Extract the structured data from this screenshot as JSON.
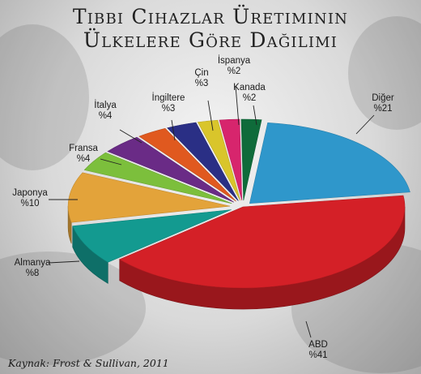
{
  "chart_data": {
    "type": "pie",
    "title_line1": "Tıbbi Cihazlar Üretiminin",
    "title_line2": "Ülkelere Göre Dağılımı",
    "slices": [
      {
        "label": "ABD",
        "value_label": "%41",
        "value": 41,
        "color": "#d42027"
      },
      {
        "label": "Almanya",
        "value_label": "%8",
        "value": 8,
        "color": "#139a90"
      },
      {
        "label": "Japonya",
        "value_label": "%10",
        "value": 10,
        "color": "#e3a33a"
      },
      {
        "label": "Fransa",
        "value_label": "%4",
        "value": 4,
        "color": "#7cbf3c"
      },
      {
        "label": "İtalya",
        "value_label": "%4",
        "value": 4,
        "color": "#6a2b86"
      },
      {
        "label": "İngiltere",
        "value_label": "%3",
        "value": 3,
        "color": "#e0591f"
      },
      {
        "label": "Çin",
        "value_label": "%3",
        "value": 3,
        "color": "#2a2f85"
      },
      {
        "label": "İspanya",
        "value_label": "%2",
        "value": 2,
        "color": "#d9c52b"
      },
      {
        "label": "Kanada",
        "value_label": "%2",
        "value": 2,
        "color": "#d7256d"
      },
      {
        "label": "",
        "value_label": "",
        "value": 2,
        "color": "#0f6b3a"
      },
      {
        "label": "Diğer",
        "value_label": "%21",
        "value": 21,
        "color": "#2f97cb"
      }
    ]
  },
  "source": "Kaynak: Frost & Sullivan, 2011"
}
